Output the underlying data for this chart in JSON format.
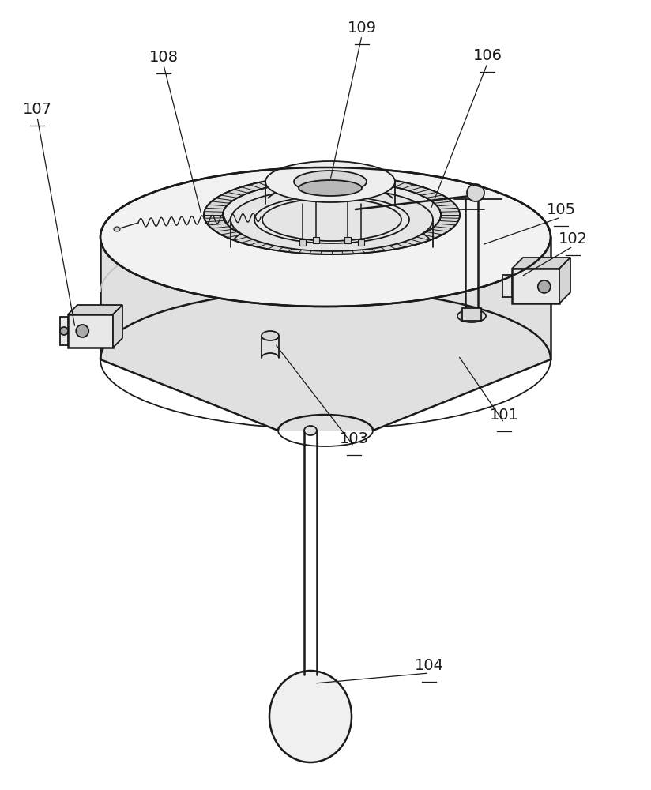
{
  "bg_color": "#ffffff",
  "lc": "#1a1a1a",
  "lw": 1.3,
  "lw2": 1.8,
  "lw_thin": 0.9,
  "fs": 14,
  "colors": {
    "top_face": "#f2f2f2",
    "side_face": "#e0e0e0",
    "inner_ring": "#e8e8e8",
    "gear_ring": "#d8d8d8",
    "center_disc_top": "#eeeeee",
    "center_disc_side": "#d8d8d8",
    "center_hole": "#b8b8b8",
    "platform_top": "#e5e5e5",
    "platform_side": "#d0d0d0",
    "bracket": "#e8e8e8",
    "bracket_side": "#d5d5d5",
    "sphere": "#f0f0f0",
    "post": "#d8d8d8"
  }
}
